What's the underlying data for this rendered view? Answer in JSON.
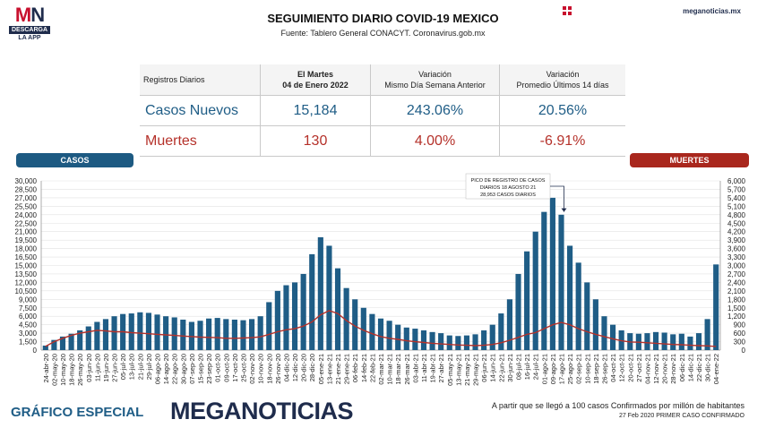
{
  "logo": {
    "mark_a": "M",
    "mark_b": "N",
    "bar": "DESCARGA",
    "sub": "LA APP"
  },
  "header": {
    "title": "SEGUIMIENTO DIARIO COVID-19 MEXICO",
    "subtitle": "Fuente: Tablero General CONACYT. Coronavirus.gob.mx",
    "site": "meganoticias.mx"
  },
  "table": {
    "headers": [
      {
        "l1": "Registros Diarios",
        "l2": ""
      },
      {
        "l1": "El Martes",
        "l2": "04 de Enero 2022"
      },
      {
        "l1": "Variación",
        "l2": "Mismo Día Semana Anterior"
      },
      {
        "l1": "Variación",
        "l2": "Promedio Últimos 14 días"
      }
    ],
    "rows": [
      {
        "label": "Casos Nuevos",
        "value": "15,184",
        "var_week": "243.06%",
        "var_avg": "20.56%"
      },
      {
        "label": "Muertes",
        "value": "130",
        "var_week": "4.00%",
        "var_avg": "-6.91%"
      }
    ]
  },
  "legend": {
    "left": "CASOS",
    "right": "MUERTES"
  },
  "annotation": [
    "PICO DE REGISTRO DE CASOS",
    "DIARIOS 18 AGOSTO 21",
    "28,953 CASOS DIARIOS"
  ],
  "footer": {
    "label": "GRÁFICO ESPECIAL",
    "brand_a": "MEGA",
    "brand_b": "NOTICIAS",
    "note1": "A partir que se llegó a 100 casos Confirmados por millón de habitantes",
    "note2": "27 Feb 2020 PRIMER CASO CONFIRMADO"
  },
  "colors": {
    "cases": "#1f5d86",
    "deaths": "#b5312a",
    "brand_dark": "#1f2c4c",
    "brand_red": "#c8102e"
  },
  "chart_data": {
    "type": "bar",
    "title": "",
    "x_tick_labels": [
      "24-abr-20",
      "02-may-20",
      "10-may-20",
      "18-may-20",
      "26-may-20",
      "03-jun-20",
      "11-jun-20",
      "19-jun-20",
      "27-jun-20",
      "05-jul-20",
      "13-jul-20",
      "21-jul-20",
      "29-jul-20",
      "06-ago-20",
      "14-ago-20",
      "22-ago-20",
      "30-ago-20",
      "07-sep-20",
      "15-sep-20",
      "23-sep-20",
      "01-oct-20",
      "09-oct-20",
      "17-oct-20",
      "25-oct-20",
      "02-nov-20",
      "10-nov-20",
      "18-nov-20",
      "26-nov-20",
      "04-dic-20",
      "12-dic-20",
      "20-dic-20",
      "28-dic-20",
      "05-ene-21",
      "13-ene-21",
      "21-ene-21",
      "29-ene-21",
      "06-feb-21",
      "14-feb-21",
      "22-feb-21",
      "02-mar-21",
      "10-mar-21",
      "18-mar-21",
      "26-mar-21",
      "03-abr-21",
      "11-abr-21",
      "19-abr-21",
      "27-abr-21",
      "05-may-21",
      "13-may-21",
      "21-may-21",
      "29-may-21",
      "06-jun-21",
      "14-jun-21",
      "22-jun-21",
      "30-jun-21",
      "08-jul-21",
      "16-jul-21",
      "24-jul-21",
      "01-ago-21",
      "09-ago-21",
      "17-ago-21",
      "25-ago-21",
      "02-sep-21",
      "10-sep-21",
      "18-sep-21",
      "26-sep-21",
      "04-oct-21",
      "12-oct-21",
      "20-oct-21",
      "27-oct-21",
      "04-nov-21",
      "12-nov-21",
      "20-nov-21",
      "28-nov-21",
      "06-dic-21",
      "14-dic-21",
      "22-dic-21",
      "30-dic-21",
      "04-ene-22"
    ],
    "y_left": {
      "label": "CASOS",
      "ylim": [
        0,
        30000
      ],
      "ticks": [
        0,
        1500,
        3000,
        4500,
        6000,
        7500,
        9000,
        10500,
        12000,
        13500,
        15000,
        16500,
        18000,
        19500,
        21000,
        22500,
        24000,
        25500,
        27000,
        28500,
        30000
      ]
    },
    "y_right": {
      "label": "MUERTES",
      "ylim": [
        0,
        6000
      ],
      "ticks": [
        0,
        300,
        600,
        900,
        1200,
        1500,
        1800,
        2100,
        2400,
        2700,
        3000,
        3300,
        3600,
        3900,
        4200,
        4500,
        4800,
        5100,
        5400,
        5700,
        6000
      ]
    },
    "series": [
      {
        "name": "CASOS",
        "axis": "left",
        "values": [
          800,
          1800,
          2400,
          2900,
          3500,
          4200,
          5000,
          5500,
          6000,
          6400,
          6500,
          6700,
          6600,
          6300,
          6000,
          5800,
          5400,
          5000,
          5200,
          5600,
          5700,
          5500,
          5400,
          5300,
          5500,
          6000,
          8500,
          10500,
          11500,
          12000,
          13500,
          17000,
          20000,
          18500,
          14500,
          11000,
          9000,
          7500,
          6400,
          5600,
          5200,
          4500,
          4000,
          3800,
          3500,
          3200,
          3000,
          2600,
          2500,
          2600,
          2800,
          3500,
          4500,
          6500,
          9000,
          13500,
          17500,
          21000,
          24500,
          27000,
          24000,
          18500,
          15500,
          12000,
          9000,
          6000,
          4500,
          3500,
          3000,
          2900,
          3000,
          3200,
          3100,
          2800,
          2900,
          2400,
          3000,
          5500,
          15184
        ]
      },
      {
        "name": "MUERTES",
        "axis": "right",
        "values": [
          130,
          300,
          420,
          520,
          600,
          650,
          700,
          680,
          650,
          650,
          620,
          600,
          580,
          560,
          540,
          520,
          500,
          480,
          460,
          450,
          440,
          420,
          420,
          430,
          440,
          470,
          560,
          650,
          720,
          760,
          850,
          1000,
          1250,
          1400,
          1300,
          1050,
          850,
          700,
          580,
          480,
          420,
          380,
          330,
          300,
          270,
          240,
          220,
          200,
          180,
          170,
          160,
          170,
          200,
          260,
          350,
          450,
          560,
          620,
          760,
          900,
          980,
          900,
          760,
          650,
          560,
          480,
          400,
          330,
          290,
          280,
          260,
          240,
          220,
          200,
          190,
          170,
          160,
          150,
          130
        ]
      }
    ],
    "annotations": [
      {
        "text": "PICO DE REGISTRO DE CASOS DIARIOS 18 AGOSTO 21 28,953 CASOS DIARIOS",
        "x": "18-ago-21",
        "y": 28953
      }
    ]
  }
}
